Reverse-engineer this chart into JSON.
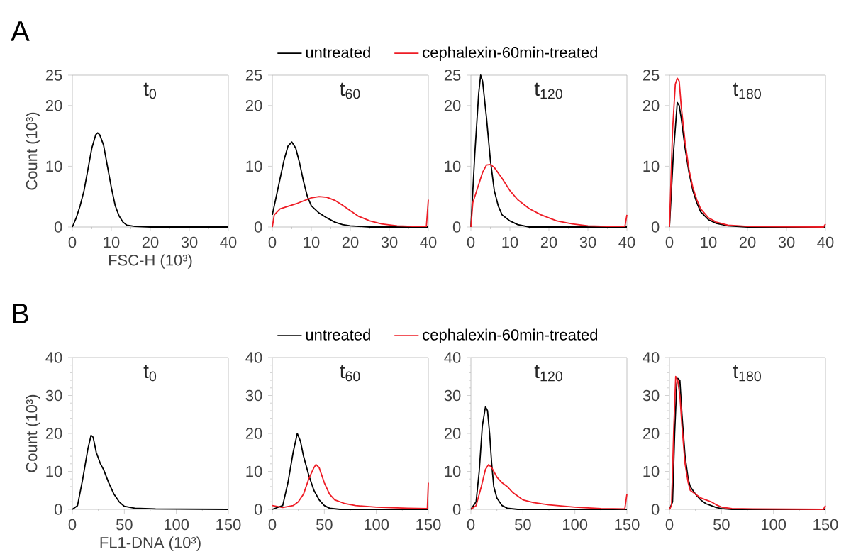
{
  "chart_data": [
    {
      "type": "line",
      "title": "t$_{0}$",
      "xlabel": "FSC-H (10³)",
      "ylabel": "Count (10³)",
      "annotations": [
        "A"
      ],
      "xlim": [
        0,
        40
      ],
      "ylim": [
        0,
        25
      ],
      "xticks": [
        0,
        10,
        20,
        30,
        40
      ],
      "yticks": [
        0,
        10,
        20,
        25
      ],
      "legend": false,
      "series": [
        {
          "color": "#000000",
          "x": [
            0,
            1,
            2,
            3,
            4,
            5,
            6,
            6.5,
            7,
            8,
            9,
            10,
            11,
            12,
            13,
            14,
            16,
            20,
            40
          ],
          "values": [
            0,
            1.5,
            3.5,
            6,
            9.5,
            13,
            15.2,
            15.5,
            15.2,
            13.5,
            10,
            6.5,
            3.5,
            1.8,
            0.8,
            0.3,
            0.1,
            0,
            0
          ]
        }
      ]
    },
    {
      "type": "line",
      "title": "t$_{60}$",
      "xlim": [
        0,
        40
      ],
      "ylim": [
        0,
        25
      ],
      "xticks": [
        0,
        10,
        20,
        30,
        40
      ],
      "yticks": [
        0,
        10,
        20,
        25
      ],
      "legend": "top",
      "series": [
        {
          "name": "untreated",
          "color": "#000000",
          "x": [
            0,
            1,
            2,
            3,
            4,
            5,
            6,
            7,
            8,
            9,
            10,
            12,
            14,
            16,
            18,
            20,
            25,
            40
          ],
          "values": [
            2,
            5,
            8,
            11,
            13.3,
            14,
            13,
            10.5,
            7.5,
            5,
            3.5,
            2.3,
            1.5,
            0.8,
            0.4,
            0.2,
            0,
            0
          ]
        },
        {
          "name": "cephalexin-60min-treated",
          "color": "#ee1c25",
          "x": [
            0,
            0.5,
            2,
            4,
            6,
            8,
            10,
            12,
            14,
            16,
            18,
            20,
            22,
            25,
            28,
            32,
            36,
            39.5,
            40
          ],
          "values": [
            0,
            2,
            3,
            3.4,
            3.8,
            4.3,
            4.8,
            5,
            4.9,
            4.4,
            3.6,
            2.7,
            1.8,
            1,
            0.5,
            0.2,
            0.1,
            0.1,
            4.5
          ]
        }
      ]
    },
    {
      "type": "line",
      "title": "t$_{120}$",
      "xlim": [
        0,
        40
      ],
      "ylim": [
        0,
        25
      ],
      "xticks": [
        0,
        10,
        20,
        30,
        40
      ],
      "yticks": [
        0,
        10,
        20,
        25
      ],
      "legend": false,
      "series": [
        {
          "color": "#000000",
          "x": [
            0,
            1,
            2,
            2.5,
            3,
            4,
            5,
            6,
            7,
            8,
            10,
            12,
            15,
            40
          ],
          "values": [
            0,
            12,
            22,
            25,
            24,
            18,
            11,
            6,
            3.5,
            2,
            1,
            0.4,
            0,
            0
          ]
        },
        {
          "color": "#ee1c25",
          "x": [
            0,
            0.5,
            2,
            3,
            4,
            5,
            6,
            8,
            10,
            12,
            15,
            18,
            22,
            26,
            30,
            35,
            39.5,
            40
          ],
          "values": [
            0,
            4,
            7,
            9,
            10.2,
            10.3,
            9.8,
            8,
            6,
            4.5,
            3,
            2,
            1,
            0.5,
            0.2,
            0.1,
            0.1,
            2
          ]
        }
      ]
    },
    {
      "type": "line",
      "title": "t$_{180}$",
      "xlim": [
        0,
        40
      ],
      "ylim": [
        0,
        25
      ],
      "xticks": [
        0,
        10,
        20,
        30,
        40
      ],
      "yticks": [
        0,
        10,
        20,
        25
      ],
      "legend": false,
      "series": [
        {
          "color": "#000000",
          "x": [
            0,
            1,
            2,
            2.5,
            3,
            4,
            5,
            6,
            7,
            8,
            10,
            12,
            15,
            20,
            40
          ],
          "values": [
            0,
            12,
            20.5,
            20,
            18,
            13,
            9,
            6,
            4,
            2.5,
            1.2,
            0.6,
            0.2,
            0,
            0
          ]
        },
        {
          "color": "#ee1c25",
          "x": [
            0,
            0.8,
            1.5,
            2,
            2.5,
            3,
            4,
            5,
            6,
            7,
            8,
            10,
            12,
            15,
            20,
            39.5,
            40
          ],
          "values": [
            0,
            16,
            23.5,
            24.5,
            24,
            20,
            14,
            9.5,
            6.5,
            4.5,
            3,
            1.5,
            0.8,
            0.3,
            0.1,
            0,
            0.5
          ]
        }
      ]
    },
    {
      "type": "line",
      "title": "t$_{0}$",
      "xlabel": "FL1-DNA (10³)",
      "ylabel": "Count (10³)",
      "annotations": [
        "B"
      ],
      "xlim": [
        0,
        150
      ],
      "ylim": [
        0,
        40
      ],
      "xticks": [
        0,
        50,
        100,
        150
      ],
      "yticks": [
        0,
        10,
        20,
        30,
        40
      ],
      "legend": false,
      "series": [
        {
          "color": "#000000",
          "x": [
            0,
            5,
            10,
            15,
            18,
            20,
            23,
            27,
            30,
            35,
            40,
            45,
            50,
            60,
            80,
            150
          ],
          "values": [
            0,
            1,
            8,
            16,
            19.5,
            19,
            15,
            12,
            10.5,
            7,
            4,
            2,
            0.8,
            0.3,
            0.1,
            0
          ]
        }
      ]
    },
    {
      "type": "line",
      "title": "t$_{60}$",
      "xlim": [
        0,
        150
      ],
      "ylim": [
        0,
        40
      ],
      "xticks": [
        0,
        50,
        100,
        150
      ],
      "yticks": [
        0,
        10,
        20,
        30,
        40
      ],
      "legend": "top",
      "series": [
        {
          "name": "untreated",
          "color": "#000000",
          "x": [
            0,
            10,
            15,
            20,
            24,
            27,
            30,
            35,
            40,
            45,
            50,
            55,
            65,
            150
          ],
          "values": [
            0,
            1,
            7,
            15,
            20,
            18,
            14,
            9,
            5,
            2.5,
            1,
            0.3,
            0,
            0
          ]
        },
        {
          "name": "cephalexin-60min-treated",
          "color": "#ee1c25",
          "x": [
            0,
            10,
            20,
            25,
            30,
            35,
            40,
            42,
            45,
            50,
            55,
            60,
            70,
            80,
            100,
            130,
            149,
            150
          ],
          "values": [
            1,
            0.5,
            1,
            2,
            4,
            8,
            11,
            11.8,
            11,
            7,
            4,
            2.5,
            1.5,
            1,
            0.6,
            0.3,
            0.2,
            7
          ]
        }
      ]
    },
    {
      "type": "line",
      "title": "t$_{120}$",
      "xlim": [
        0,
        150
      ],
      "ylim": [
        0,
        40
      ],
      "xticks": [
        0,
        50,
        100,
        150
      ],
      "yticks": [
        0,
        10,
        20,
        30,
        40
      ],
      "legend": false,
      "series": [
        {
          "color": "#000000",
          "x": [
            0,
            5,
            8,
            11,
            14,
            16,
            18,
            20,
            22,
            25,
            30,
            35,
            45,
            150
          ],
          "values": [
            0,
            2,
            10,
            22,
            27,
            26,
            20,
            12,
            6,
            3,
            1,
            0.3,
            0,
            0
          ]
        },
        {
          "color": "#ee1c25",
          "x": [
            0,
            5,
            10,
            14,
            17,
            20,
            25,
            30,
            35,
            40,
            45,
            50,
            60,
            75,
            100,
            125,
            148,
            150
          ],
          "values": [
            0,
            1,
            6,
            10.5,
            11.8,
            11,
            8.5,
            7,
            6,
            4.5,
            3.5,
            2.5,
            1.8,
            1.2,
            0.6,
            0.2,
            0.1,
            4
          ]
        }
      ]
    },
    {
      "type": "line",
      "title": "t$_{180}$",
      "xlim": [
        0,
        150
      ],
      "ylim": [
        0,
        40
      ],
      "xticks": [
        0,
        50,
        100,
        150
      ],
      "yticks": [
        0,
        10,
        20,
        30,
        40
      ],
      "legend": false,
      "series": [
        {
          "color": "#000000",
          "x": [
            0,
            3,
            5,
            7,
            8,
            10,
            12,
            15,
            18,
            20,
            25,
            30,
            35,
            40,
            45,
            50,
            60,
            150
          ],
          "values": [
            0,
            2,
            20,
            33,
            34.5,
            34,
            25,
            14,
            8,
            6,
            4,
            2.5,
            1.5,
            1,
            0.5,
            0.2,
            0,
            0
          ]
        },
        {
          "color": "#ee1c25",
          "x": [
            0,
            2,
            4,
            6,
            8,
            10,
            12,
            15,
            18,
            20,
            25,
            30,
            35,
            40,
            45,
            50,
            60,
            80,
            148,
            150
          ],
          "values": [
            0,
            1,
            20,
            35,
            34,
            30,
            22,
            12,
            7,
            5,
            4,
            3,
            2.5,
            2,
            1.2,
            0.6,
            0.2,
            0.1,
            0,
            1
          ]
        }
      ]
    }
  ]
}
